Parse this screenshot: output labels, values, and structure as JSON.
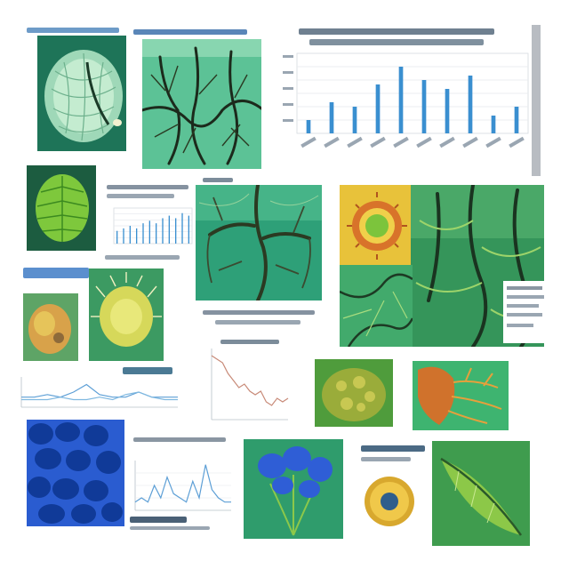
{
  "page": {
    "title": "",
    "note": ""
  },
  "palette": {
    "leaf_green": "#2e9c6a",
    "deep_teal": "#1e6e5a",
    "lime": "#9ccc3c",
    "vein_dark": "#1c2a1c",
    "blue_cells": "#1d4fc4",
    "orange_tissue": "#d9782a",
    "yellow_cell": "#e8c43a",
    "chart_bar": "#3a8fd0",
    "chart_line": "#5d9fd6",
    "chart_line_alt": "#c88a78",
    "caption_ink": "#7a8a9a"
  },
  "captions": {
    "c1": "",
    "c2": "",
    "c3": "",
    "c4": "",
    "c5": "",
    "c6": "",
    "c7": "",
    "c8": "",
    "c9": "",
    "c10": "",
    "c11": "",
    "c12": "",
    "c13": "",
    "c14": ""
  },
  "chart_data": [
    {
      "type": "bar",
      "title": "",
      "categories": [
        "",
        "",
        "",
        "",
        "",
        "",
        "",
        "",
        "",
        ""
      ],
      "values": [
        3,
        7,
        6,
        11,
        15,
        12,
        10,
        13,
        4,
        6
      ],
      "ylim": [
        0,
        18
      ],
      "grid": true
    },
    {
      "type": "bar",
      "title": "",
      "categories": [
        "",
        "",
        "",
        "",
        "",
        "",
        "",
        "",
        "",
        "",
        "",
        ""
      ],
      "values": [
        5,
        6,
        7,
        6,
        8,
        9,
        8,
        10,
        11,
        10,
        12,
        11
      ],
      "ylim": [
        0,
        14
      ],
      "grid": true
    },
    {
      "type": "line",
      "title": "",
      "x": [
        0,
        1,
        2,
        3,
        4,
        5,
        6,
        7,
        8,
        9,
        10,
        11,
        12
      ],
      "series": [
        {
          "values": [
            4,
            4,
            5,
            4,
            6,
            9,
            5,
            4,
            4,
            6,
            4,
            4,
            4
          ]
        },
        {
          "values": [
            3,
            3,
            3,
            4,
            3,
            3,
            4,
            3,
            5,
            6,
            4,
            3,
            3
          ]
        }
      ],
      "ylim": [
        0,
        12
      ],
      "grid": false
    },
    {
      "type": "line",
      "title": "",
      "x": [
        0,
        1,
        2,
        3,
        4,
        5,
        6,
        7,
        8,
        9,
        10,
        11,
        12,
        13,
        14
      ],
      "series": [
        {
          "values": [
            18,
            17,
            16,
            13,
            11,
            9,
            10,
            8,
            7,
            8,
            5,
            4,
            6,
            5,
            6
          ]
        }
      ],
      "ylim": [
        0,
        20
      ],
      "grid": false
    },
    {
      "type": "line",
      "title": "",
      "x": [
        0,
        1,
        2,
        3,
        4,
        5,
        6,
        7,
        8,
        9,
        10,
        11,
        12,
        13,
        14,
        15
      ],
      "series": [
        {
          "values": [
            2,
            3,
            2,
            6,
            3,
            8,
            4,
            3,
            2,
            7,
            3,
            11,
            5,
            3,
            2,
            2
          ]
        }
      ],
      "ylim": [
        0,
        12
      ],
      "grid": true
    }
  ]
}
